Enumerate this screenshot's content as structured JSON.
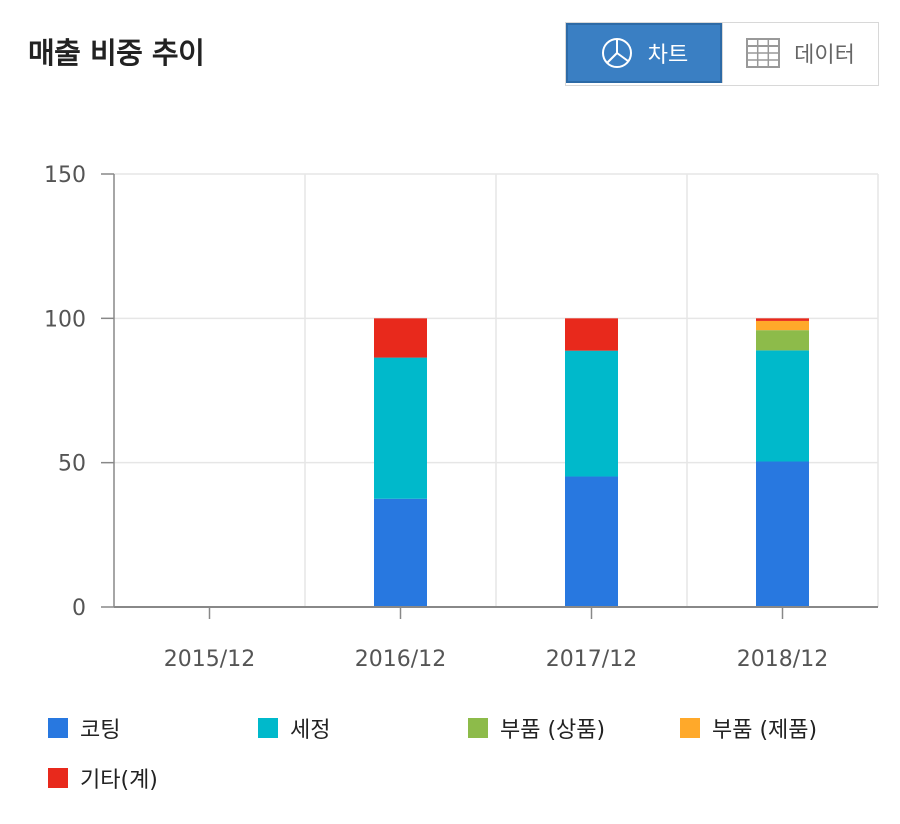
{
  "title": "매출 비중 추이",
  "view_toggle": {
    "chart_label": "차트",
    "data_label": "데이터"
  },
  "colors": {
    "accent": "#3a7fc3",
    "series": [
      "#2878e0",
      "#00b9cb",
      "#8dbb4a",
      "#ffa92a",
      "#e8291c"
    ]
  },
  "chart_data": {
    "type": "bar",
    "stacked": true,
    "categories": [
      "2015/12",
      "2016/12",
      "2017/12",
      "2018/12"
    ],
    "series": [
      {
        "name": "코팅",
        "color": "#2878e0",
        "values": [
          0,
          37.5,
          45.2,
          50.4
        ]
      },
      {
        "name": "세정",
        "color": "#00b9cb",
        "values": [
          0,
          48.9,
          43.6,
          38.5
        ]
      },
      {
        "name": "부품 (상품)",
        "color": "#8dbb4a",
        "values": [
          0,
          0,
          0,
          7.0
        ]
      },
      {
        "name": "부품 (제품)",
        "color": "#ffa92a",
        "values": [
          0,
          0,
          0,
          3.2
        ]
      },
      {
        "name": "기타(계)",
        "color": "#e8291c",
        "values": [
          0,
          13.6,
          11.2,
          0.9
        ]
      }
    ],
    "yticks": [
      0,
      50,
      100,
      150
    ],
    "ylim": [
      0,
      150
    ],
    "grid": true,
    "legend_position": "bottom"
  }
}
